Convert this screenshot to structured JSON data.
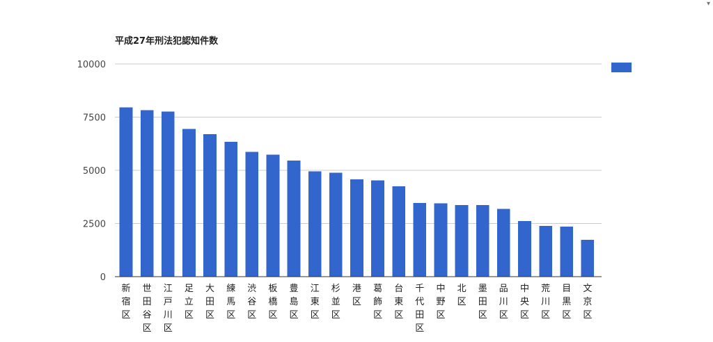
{
  "chart_data": {
    "type": "bar",
    "title": "平成27年刑法犯認知件数",
    "xlabel": "",
    "ylabel": "",
    "ylim": [
      0,
      10000
    ],
    "yticks": [
      0,
      2500,
      5000,
      7500,
      10000
    ],
    "ytick_labels": [
      "0",
      "2500",
      "5000",
      "7500",
      "10000"
    ],
    "grid": true,
    "legend": "top-right",
    "categories": [
      "新宿区",
      "世田谷区",
      "江戸川区",
      "足立区",
      "大田区",
      "練馬区",
      "渋谷区",
      "板橋区",
      "豊島区",
      "江東区",
      "杉並区",
      "港区",
      "葛飾区",
      "台東区",
      "千代田区",
      "中野区",
      "北区",
      "墨田区",
      "品川区",
      "中央区",
      "荒川区",
      "目黒区",
      "文京区"
    ],
    "series": [
      {
        "color": "#3366cc",
        "values": [
          7950,
          7820,
          7760,
          6940,
          6700,
          6340,
          5860,
          5740,
          5450,
          4950,
          4890,
          4570,
          4530,
          4250,
          3460,
          3440,
          3360,
          3370,
          3180,
          2610,
          2390,
          2360,
          1730
        ]
      }
    ]
  },
  "window": {
    "corner_mark": "▾"
  }
}
